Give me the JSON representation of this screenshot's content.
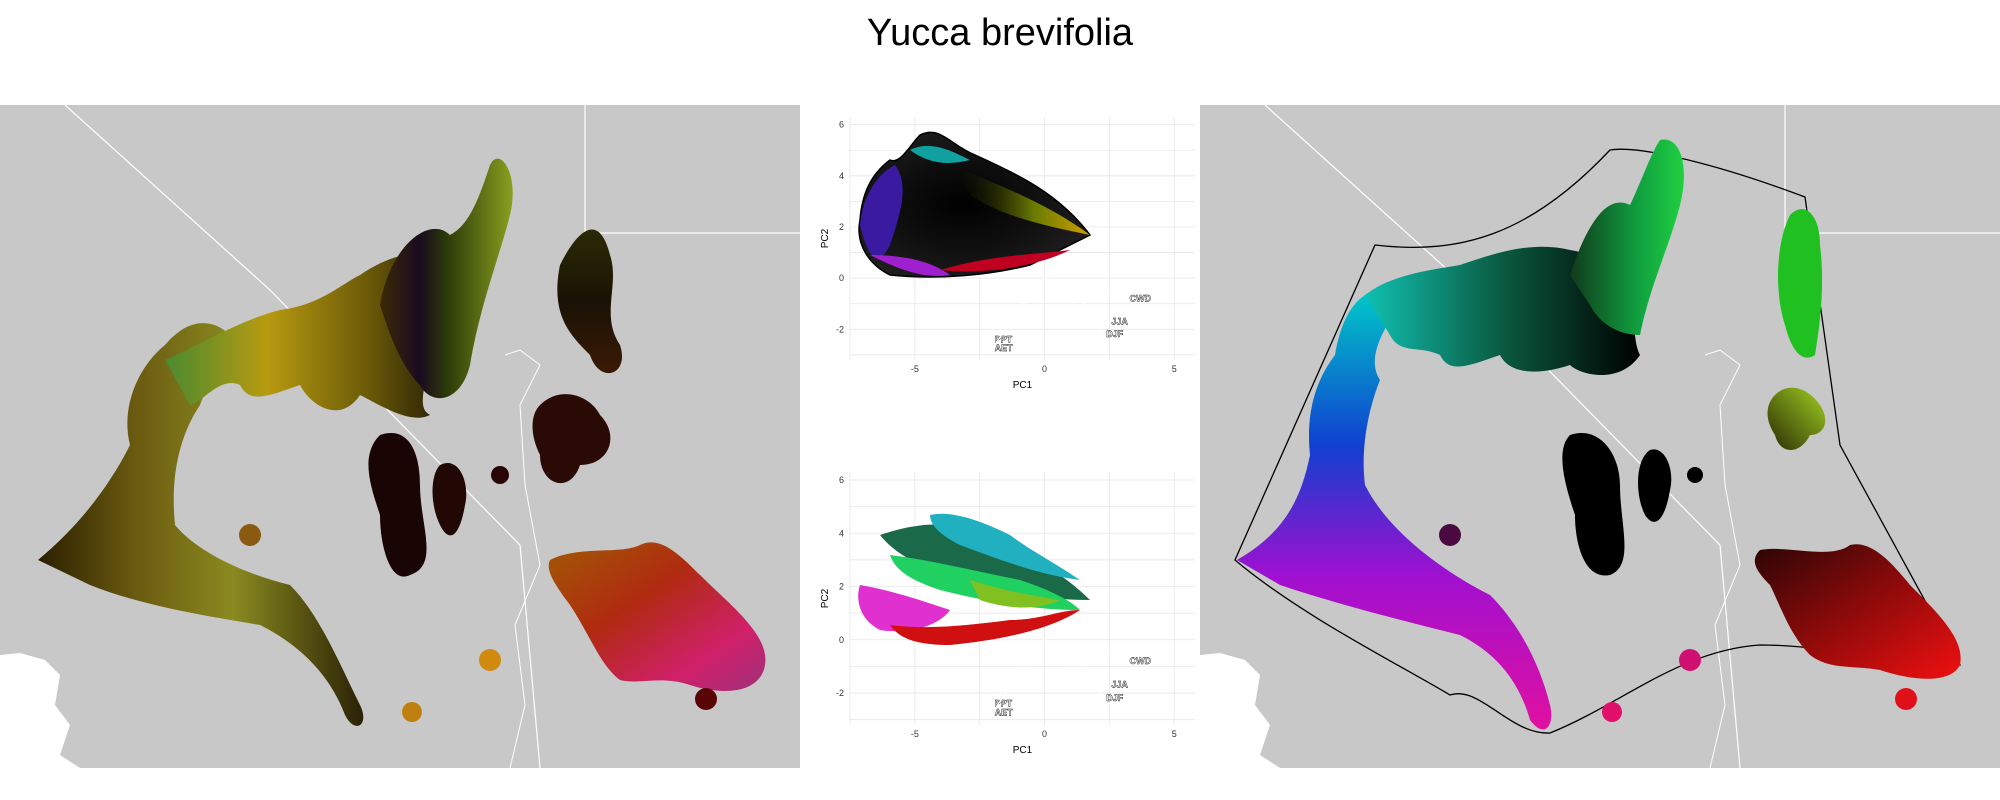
{
  "title": "Yucca brevifolia",
  "panels": {
    "left_map": {
      "name": "climate-rgb-map"
    },
    "right_map": {
      "name": "geographic-rgb-map"
    },
    "pca_top": {
      "chart_data": {
        "type": "scatter",
        "xlabel": "PC1",
        "ylabel": "PC2",
        "x_ticks": [
          -5,
          0,
          5
        ],
        "y_ticks": [
          -2,
          0,
          2,
          4,
          6
        ],
        "xlim": [
          -7.5,
          5.8
        ],
        "ylim": [
          -3.2,
          6.3
        ],
        "grid": true,
        "hull_outline": true,
        "loadings": [
          {
            "label": "CWD",
            "end": [
              3.2,
              -0.75
            ]
          },
          {
            "label": "JJA",
            "end": [
              2.5,
              -1.65
            ]
          },
          {
            "label": "DJF",
            "end": [
              2.3,
              -2.15
            ]
          },
          {
            "label": "PPT",
            "end": [
              -2.0,
              -2.35
            ]
          },
          {
            "label": "AET",
            "end": [
              -2.0,
              -2.7
            ]
          }
        ]
      }
    },
    "pca_bottom": {
      "chart_data": {
        "type": "scatter",
        "xlabel": "PC1",
        "ylabel": "PC2",
        "x_ticks": [
          -5,
          0,
          5
        ],
        "y_ticks": [
          -2,
          0,
          2,
          4,
          6
        ],
        "xlim": [
          -7.5,
          5.8
        ],
        "ylim": [
          -3.2,
          6.3
        ],
        "grid": true,
        "hull_outline": false,
        "loadings": [
          {
            "label": "CWD",
            "end": [
              3.2,
              -0.75
            ]
          },
          {
            "label": "JJA",
            "end": [
              2.5,
              -1.65
            ]
          },
          {
            "label": "DJF",
            "end": [
              2.3,
              -2.15
            ]
          },
          {
            "label": "PPT",
            "end": [
              -2.0,
              -2.35
            ]
          },
          {
            "label": "AET",
            "end": [
              -2.0,
              -2.7
            ]
          }
        ]
      }
    }
  },
  "colors": {
    "land": "#c8c8c8",
    "border": "#ffffff",
    "grid": "#e6e6e6",
    "arrow": "#ffffff",
    "hull": "#000000"
  }
}
